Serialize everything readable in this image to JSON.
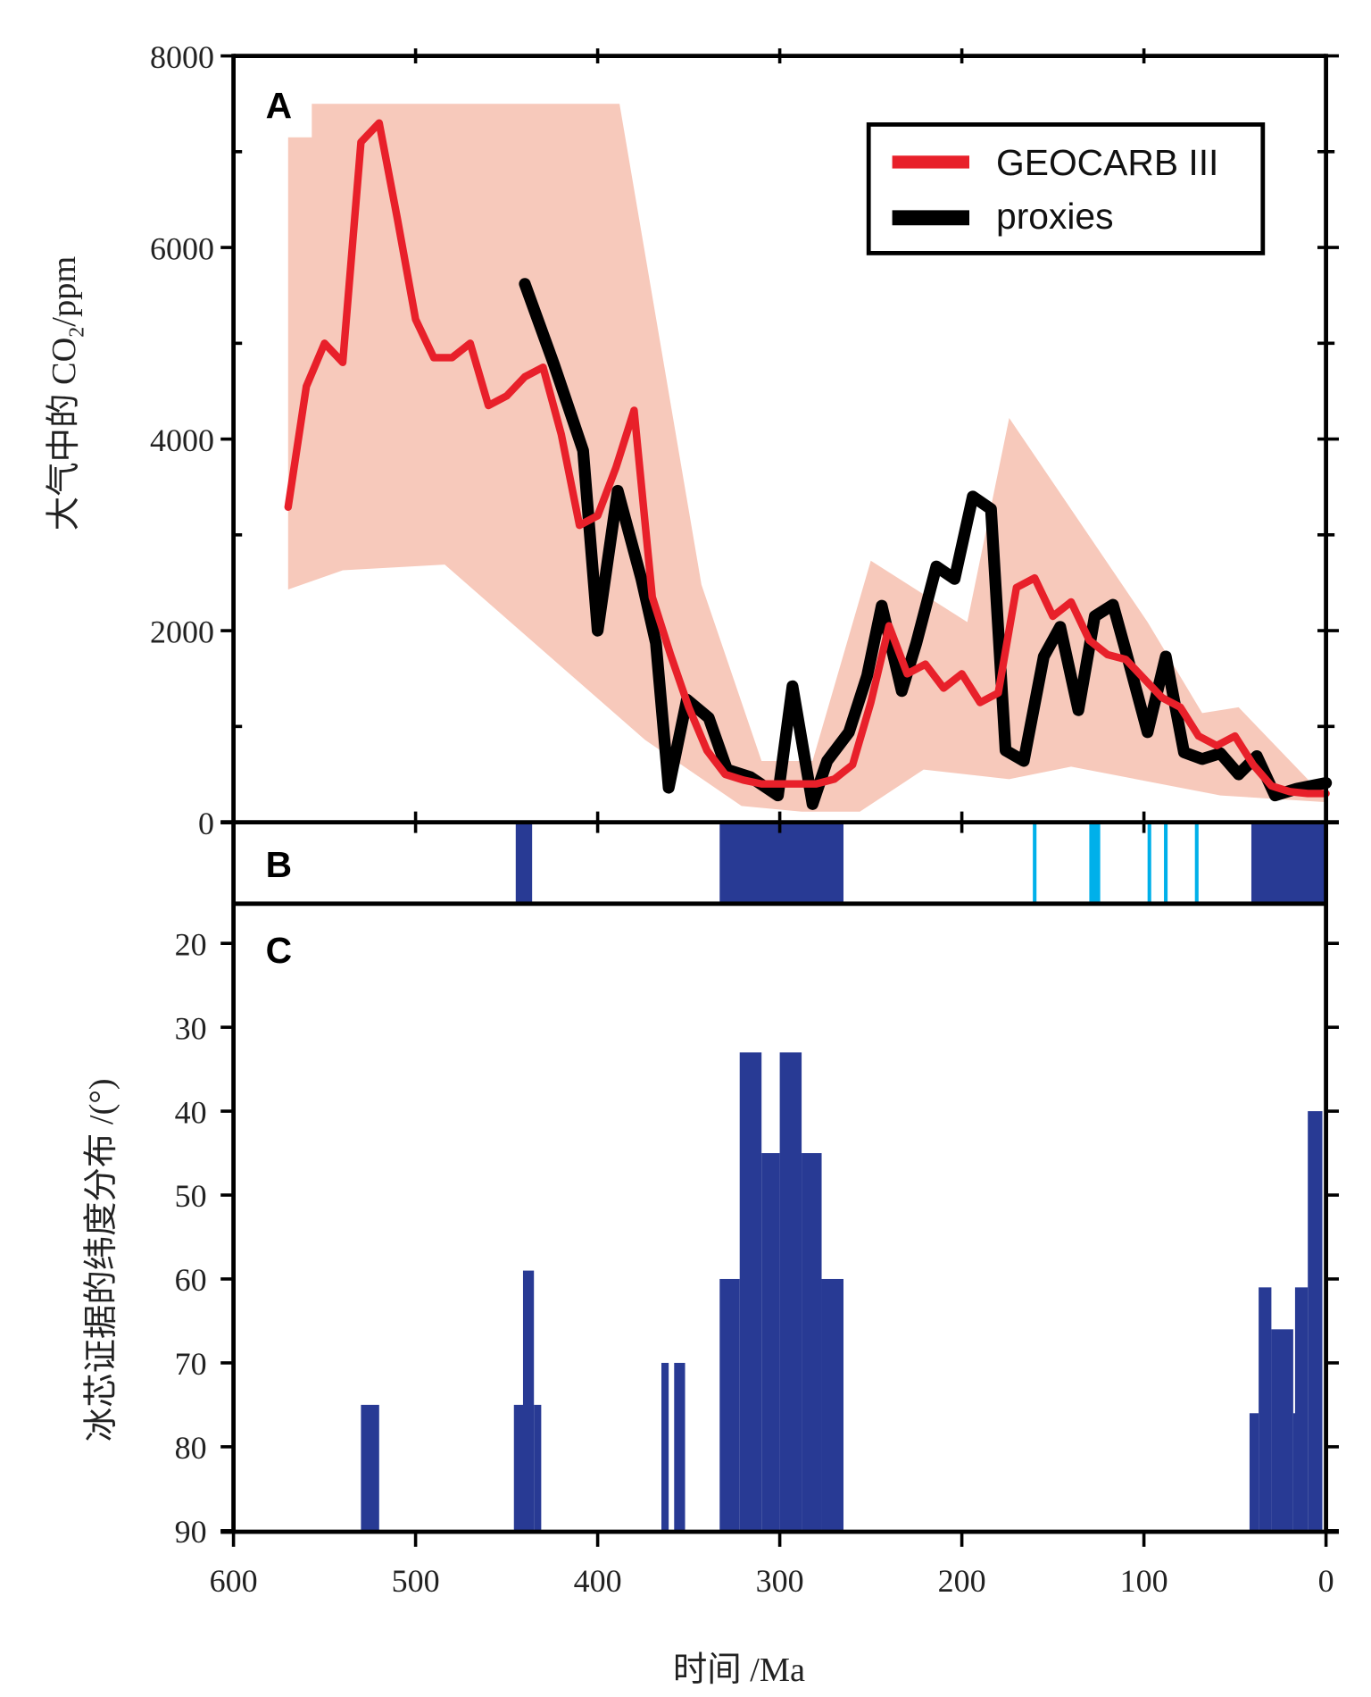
{
  "chart_data": [
    {
      "panel": "A",
      "type": "line",
      "ylabel": "大气中的 CO₂/ppm",
      "xlabel": "时间 /Ma",
      "xlim": [
        600,
        0
      ],
      "ylim": [
        0,
        8000
      ],
      "yticks": [
        "0",
        "2000",
        "4000",
        "6000",
        "8000"
      ],
      "legend": {
        "placement": "top-right",
        "entries": [
          {
            "name": "GEOCARB III",
            "color": "#e8202a"
          },
          {
            "name": "proxies",
            "color": "#000000"
          }
        ]
      },
      "envelope": {
        "color": "#f7c9bb",
        "upper": [
          [
            570,
            7150
          ],
          [
            557,
            7150
          ],
          [
            557,
            7500
          ],
          [
            388,
            7500
          ],
          [
            343,
            2480
          ],
          [
            310,
            640
          ],
          [
            282,
            640
          ],
          [
            250,
            2730
          ],
          [
            197,
            2090
          ],
          [
            174,
            4220
          ],
          [
            98,
            2090
          ],
          [
            68,
            1140
          ],
          [
            48,
            1200
          ],
          [
            0,
            250
          ]
        ],
        "lower": [
          [
            0,
            210
          ],
          [
            58,
            280
          ],
          [
            140,
            580
          ],
          [
            174,
            450
          ],
          [
            221,
            550
          ],
          [
            256,
            110
          ],
          [
            288,
            110
          ],
          [
            321,
            170
          ],
          [
            374,
            860
          ],
          [
            484,
            2690
          ],
          [
            540,
            2630
          ],
          [
            570,
            2430
          ]
        ]
      },
      "series": [
        {
          "name": "GEOCARB III",
          "color": "#e8202a",
          "points": [
            [
              570,
              3290
            ],
            [
              560,
              4550
            ],
            [
              550,
              5000
            ],
            [
              540,
              4800
            ],
            [
              530,
              7100
            ],
            [
              520,
              7300
            ],
            [
              510,
              6300
            ],
            [
              500,
              5250
            ],
            [
              490,
              4850
            ],
            [
              480,
              4850
            ],
            [
              470,
              5000
            ],
            [
              460,
              4350
            ],
            [
              450,
              4450
            ],
            [
              440,
              4650
            ],
            [
              430,
              4750
            ],
            [
              420,
              4050
            ],
            [
              410,
              3100
            ],
            [
              400,
              3200
            ],
            [
              390,
              3700
            ],
            [
              380,
              4300
            ],
            [
              370,
              2350
            ],
            [
              360,
              1750
            ],
            [
              350,
              1200
            ],
            [
              340,
              750
            ],
            [
              330,
              500
            ],
            [
              320,
              440
            ],
            [
              310,
              400
            ],
            [
              300,
              400
            ],
            [
              290,
              400
            ],
            [
              280,
              400
            ],
            [
              270,
              450
            ],
            [
              260,
              600
            ],
            [
              250,
              1250
            ],
            [
              240,
              2050
            ],
            [
              230,
              1550
            ],
            [
              220,
              1650
            ],
            [
              210,
              1400
            ],
            [
              200,
              1550
            ],
            [
              190,
              1250
            ],
            [
              180,
              1350
            ],
            [
              170,
              2450
            ],
            [
              160,
              2550
            ],
            [
              150,
              2150
            ],
            [
              140,
              2300
            ],
            [
              130,
              1900
            ],
            [
              120,
              1750
            ],
            [
              110,
              1700
            ],
            [
              100,
              1500
            ],
            [
              90,
              1300
            ],
            [
              80,
              1200
            ],
            [
              70,
              900
            ],
            [
              60,
              800
            ],
            [
              50,
              900
            ],
            [
              40,
              600
            ],
            [
              30,
              380
            ],
            [
              20,
              320
            ],
            [
              10,
              300
            ],
            [
              0,
              300
            ]
          ]
        },
        {
          "name": "proxies",
          "color": "#000000",
          "points": [
            [
              440,
              5620
            ],
            [
              424,
              4780
            ],
            [
              408,
              3880
            ],
            [
              400,
              2000
            ],
            [
              389,
              3460
            ],
            [
              376,
              2540
            ],
            [
              368,
              1870
            ],
            [
              361,
              360
            ],
            [
              351,
              1280
            ],
            [
              339,
              1090
            ],
            [
              329,
              550
            ],
            [
              316,
              470
            ],
            [
              301,
              280
            ],
            [
              293,
              1420
            ],
            [
              282,
              190
            ],
            [
              274,
              640
            ],
            [
              262,
              940
            ],
            [
              252,
              1530
            ],
            [
              244,
              2260
            ],
            [
              233,
              1370
            ],
            [
              225,
              1870
            ],
            [
              214,
              2670
            ],
            [
              204,
              2540
            ],
            [
              194,
              3400
            ],
            [
              184,
              3270
            ],
            [
              176,
              750
            ],
            [
              166,
              640
            ],
            [
              155,
              1730
            ],
            [
              146,
              2040
            ],
            [
              136,
              1170
            ],
            [
              127,
              2150
            ],
            [
              117,
              2270
            ],
            [
              108,
              1650
            ],
            [
              98,
              940
            ],
            [
              88,
              1730
            ],
            [
              78,
              730
            ],
            [
              68,
              660
            ],
            [
              58,
              720
            ],
            [
              48,
              500
            ],
            [
              38,
              690
            ],
            [
              28,
              280
            ],
            [
              16,
              350
            ],
            [
              0,
              410
            ]
          ]
        }
      ]
    },
    {
      "panel": "B",
      "type": "bar",
      "description": "glacial intervals",
      "intervals": [
        {
          "from": 445,
          "to": 436,
          "color": "#283a94"
        },
        {
          "from": 333,
          "to": 265,
          "color": "#283a94"
        },
        {
          "from": 161,
          "to": 159,
          "color": "#00b0ea"
        },
        {
          "from": 130,
          "to": 124,
          "color": "#00b0ea"
        },
        {
          "from": 98,
          "to": 96,
          "color": "#00b0ea"
        },
        {
          "from": 89,
          "to": 87,
          "color": "#00b0ea"
        },
        {
          "from": 72,
          "to": 70,
          "color": "#00b0ea"
        },
        {
          "from": 41,
          "to": 0,
          "color": "#283a94"
        }
      ]
    },
    {
      "panel": "C",
      "type": "bar",
      "ylabel": "冰芯证据的纬度分布 /(°)",
      "xlabel": "时间 /Ma",
      "xlim": [
        600,
        0
      ],
      "ylim": [
        90,
        17
      ],
      "yticks": [
        "20",
        "30",
        "40",
        "50",
        "60",
        "70",
        "80",
        "90"
      ],
      "xticks": [
        "600",
        "500",
        "400",
        "300",
        "200",
        "100",
        "0"
      ],
      "color": "#283a94",
      "bars": [
        {
          "from": 530,
          "to": 520,
          "lat": 75
        },
        {
          "from": 446,
          "to": 440,
          "lat": 75
        },
        {
          "from": 441,
          "to": 435,
          "lat": 59
        },
        {
          "from": 435,
          "to": 431,
          "lat": 75
        },
        {
          "from": 365,
          "to": 361,
          "lat": 70
        },
        {
          "from": 358,
          "to": 352,
          "lat": 70
        },
        {
          "from": 333,
          "to": 322,
          "lat": 60
        },
        {
          "from": 322,
          "to": 310,
          "lat": 33
        },
        {
          "from": 310,
          "to": 300,
          "lat": 45
        },
        {
          "from": 300,
          "to": 288,
          "lat": 33
        },
        {
          "from": 288,
          "to": 277,
          "lat": 45
        },
        {
          "from": 277,
          "to": 265,
          "lat": 60
        },
        {
          "from": 42,
          "to": 37,
          "lat": 76
        },
        {
          "from": 37,
          "to": 30,
          "lat": 61
        },
        {
          "from": 30,
          "to": 18,
          "lat": 66
        },
        {
          "from": 18,
          "to": 17,
          "lat": 76
        },
        {
          "from": 17,
          "to": 10,
          "lat": 61
        },
        {
          "from": 10,
          "to": 2,
          "lat": 40
        }
      ]
    }
  ],
  "labels": {
    "panelA": "A",
    "panelB": "B",
    "panelC": "C",
    "xlabel": "时间 /Ma",
    "ylabelA_main": "大气中的 CO",
    "ylabelA_sub": "2",
    "ylabelA_unit": "/ppm",
    "ylabelC": "冰芯证据的纬度分布 /(°)"
  }
}
